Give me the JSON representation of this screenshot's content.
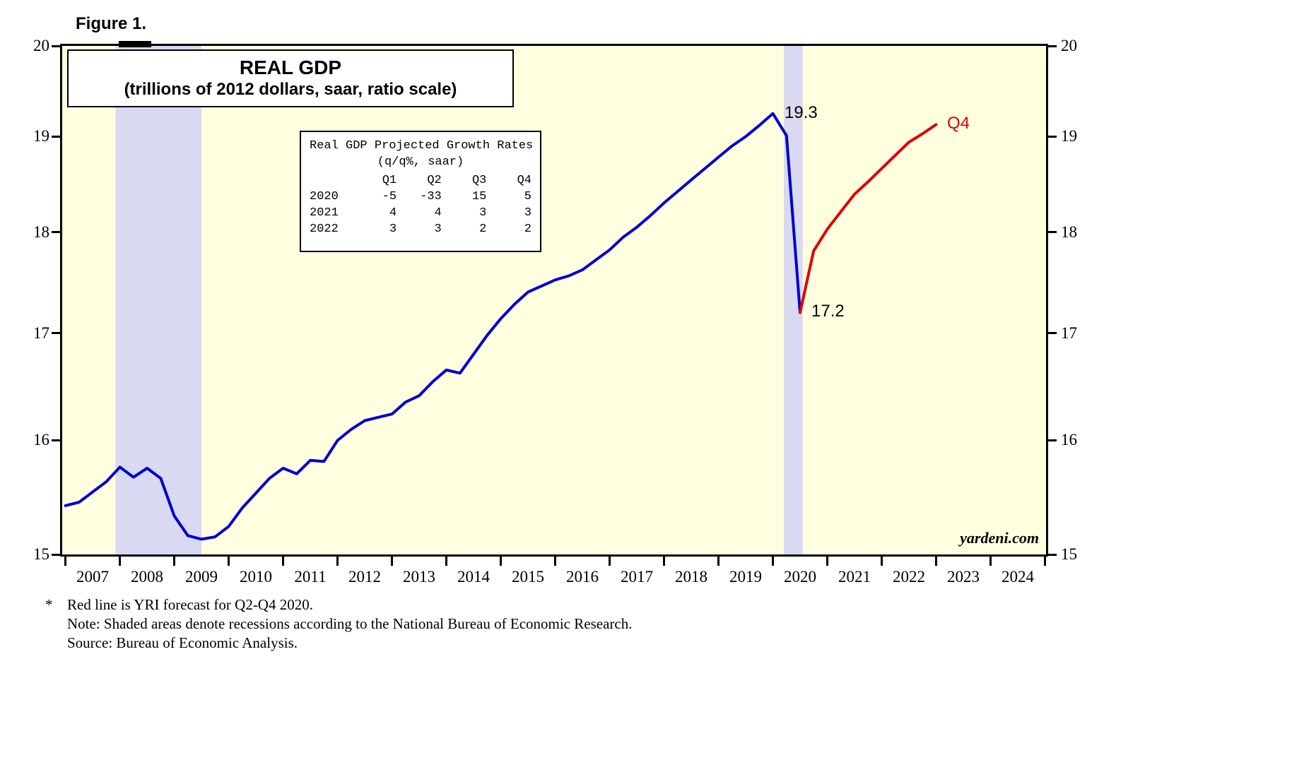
{
  "figure": {
    "label": "Figure 1."
  },
  "title_box": {
    "line1": "REAL GDP",
    "line2": "(trillions of 2012 dollars, saar, ratio scale)"
  },
  "growth_table": {
    "title": "Real GDP Projected Growth Rates",
    "subtitle": "(q/q%, saar)",
    "columns": [
      "Q1",
      "Q2",
      "Q3",
      "Q4"
    ],
    "rows": [
      {
        "year": "2020",
        "values": [
          "-5",
          "-33",
          "15",
          "5"
        ]
      },
      {
        "year": "2021",
        "values": [
          "4",
          "4",
          "3",
          "3"
        ]
      },
      {
        "year": "2022",
        "values": [
          "3",
          "3",
          "2",
          "2"
        ]
      }
    ]
  },
  "footnotes": {
    "star": "*",
    "line1": "Red line is YRI forecast for Q2-Q4 2020.",
    "line2": "Note: Shaded areas denote recessions according to the National Bureau of Economic Research.",
    "line3": "Source: Bureau of Economic Analysis."
  },
  "colors": {
    "history": "#0000CC",
    "forecast": "#DD0000",
    "plot_bg": "#FFFFE0",
    "recession_band": "#D9D9F2",
    "axis": "#000000"
  },
  "chart_data": {
    "type": "line",
    "title": "REAL GDP (trillions of 2012 dollars, saar, ratio scale)",
    "y_scale": "log",
    "ylim": [
      15,
      20
    ],
    "y_ticks": [
      15,
      16,
      17,
      18,
      19,
      20
    ],
    "x_domain": [
      2006.94,
      2025.02
    ],
    "x_tick_years": [
      2007,
      2008,
      2009,
      2010,
      2011,
      2012,
      2013,
      2014,
      2015,
      2016,
      2017,
      2018,
      2019,
      2020,
      2021,
      2022,
      2023,
      2024,
      2025
    ],
    "x_labels": [
      2007,
      2008,
      2009,
      2010,
      2011,
      2012,
      2013,
      2014,
      2015,
      2016,
      2017,
      2018,
      2019,
      2020,
      2021,
      2022,
      2023,
      2024
    ],
    "recession_bands": [
      [
        2007.92,
        2009.5
      ],
      [
        2020.2,
        2020.55
      ]
    ],
    "series": [
      {
        "name": "real-gdp-actual",
        "color_key": "history",
        "x_start": 2007.0,
        "x_step": 0.25,
        "values": [
          15.42,
          15.45,
          15.54,
          15.63,
          15.76,
          15.67,
          15.75,
          15.66,
          15.33,
          15.16,
          15.13,
          15.15,
          15.24,
          15.4,
          15.53,
          15.66,
          15.75,
          15.7,
          15.82,
          15.81,
          16.0,
          16.1,
          16.18,
          16.21,
          16.24,
          16.35,
          16.41,
          16.54,
          16.65,
          16.62,
          16.8,
          16.98,
          17.14,
          17.28,
          17.4,
          17.46,
          17.52,
          17.56,
          17.62,
          17.72,
          17.82,
          17.95,
          18.05,
          18.17,
          18.3,
          18.42,
          18.54,
          18.66,
          18.78,
          18.9,
          19.0,
          19.12,
          19.25,
          19.01,
          17.2
        ]
      },
      {
        "name": "yri-forecast",
        "color_key": "forecast",
        "x_start": 2020.5,
        "x_step": 0.25,
        "values": [
          17.2,
          17.81,
          18.03,
          18.21,
          18.39,
          18.52,
          18.66,
          18.8,
          18.94,
          19.03,
          19.13
        ]
      }
    ],
    "annotations": [
      {
        "label": "19.3",
        "t": 2020.0,
        "value": 19.25
      },
      {
        "label": "17.2",
        "t": 2020.5,
        "value": 17.2
      },
      {
        "label": "Q4",
        "t": 2023.0,
        "value": 19.13,
        "color_key": "forecast"
      }
    ],
    "watermark": "yardeni.com"
  }
}
